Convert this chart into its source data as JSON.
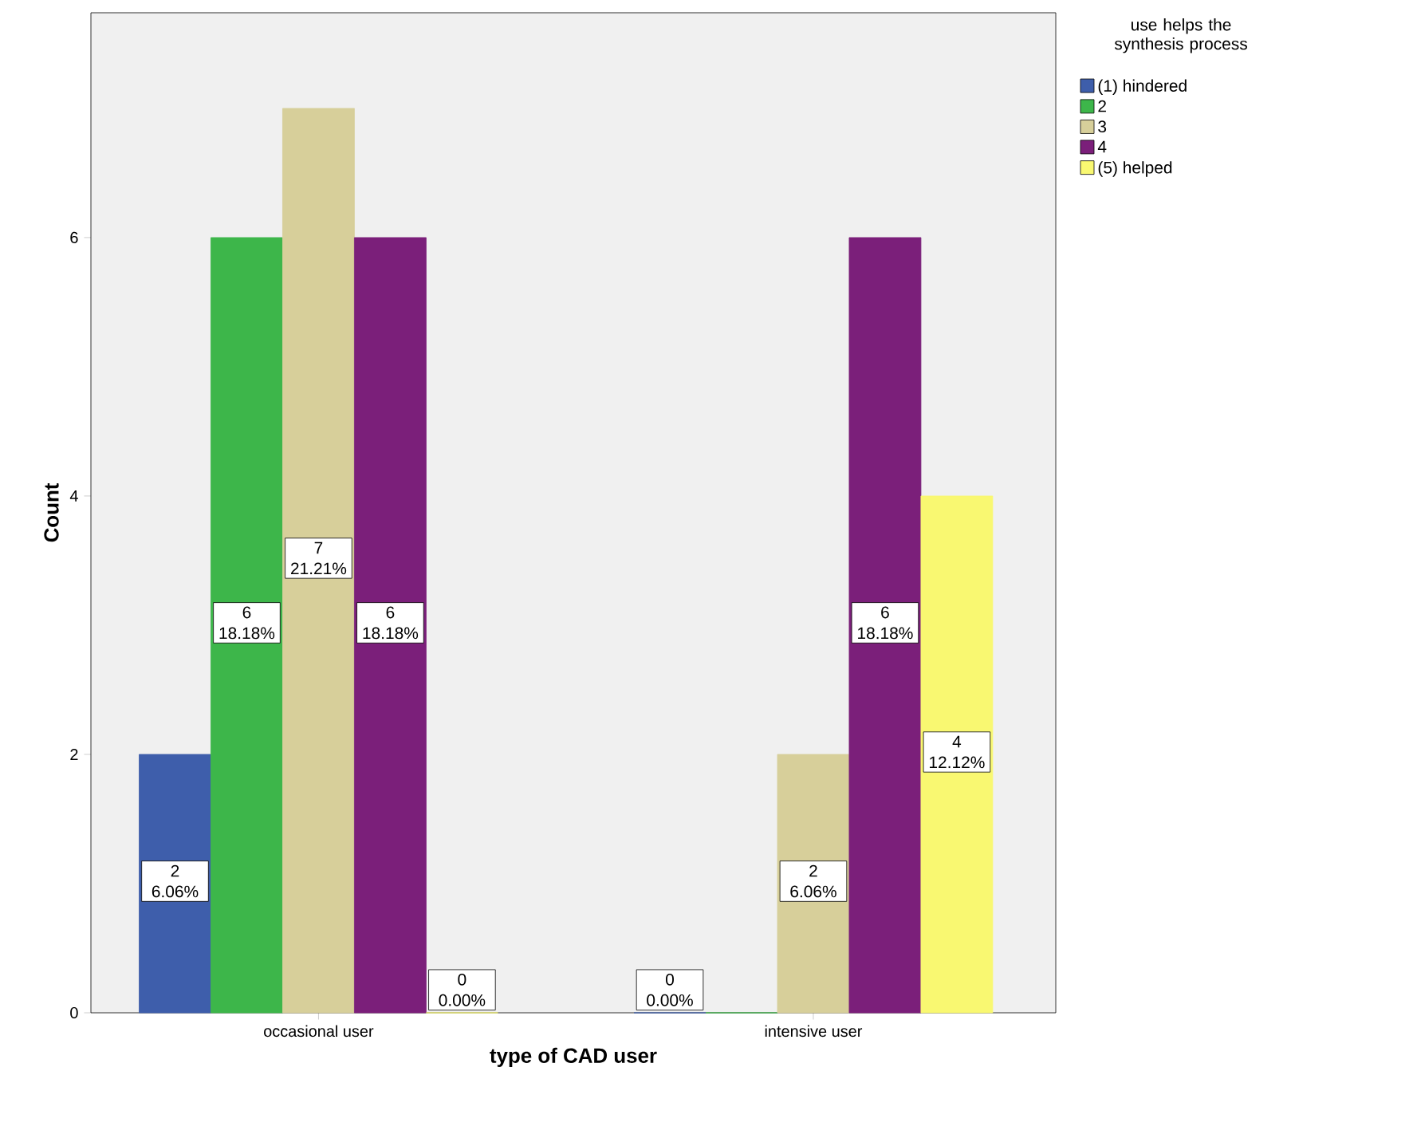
{
  "chart_data": {
    "type": "bar",
    "xlabel": "type of CAD user",
    "ylabel": "Count",
    "legend_title": "use helps the synthesis process",
    "categories": [
      "occasional user",
      "intensive user"
    ],
    "series": [
      {
        "name": "(1) hindered",
        "color": "#3e5eab",
        "values": [
          2,
          0
        ],
        "value_labels": [
          "2 6.06%",
          "0 0.00%"
        ]
      },
      {
        "name": "2",
        "color": "#3db64a",
        "values": [
          6,
          0
        ],
        "value_labels": [
          "6 18.18%",
          null
        ]
      },
      {
        "name": "3",
        "color": "#d7cf9a",
        "values": [
          7,
          2
        ],
        "value_labels": [
          "7 21.21%",
          "2 6.06%"
        ]
      },
      {
        "name": "4",
        "color": "#7b1f7a",
        "values": [
          6,
          6
        ],
        "value_labels": [
          "6 18.18%",
          "6 18.18%"
        ]
      },
      {
        "name": "(5) helped",
        "color": "#f9f871",
        "values": [
          0,
          4
        ],
        "value_labels": [
          "0 0.00%",
          "4 12.12%"
        ]
      }
    ],
    "ylim": [
      0,
      7.74
    ],
    "yticks": [
      0,
      2,
      4,
      6
    ],
    "grid": false,
    "legend": "right"
  }
}
